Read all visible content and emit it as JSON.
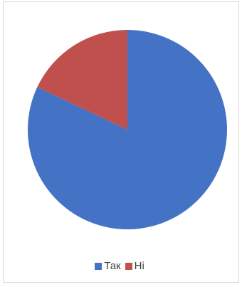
{
  "chart_data": {
    "type": "pie",
    "title": "",
    "categories": [
      "Так",
      "Ні"
    ],
    "values": [
      82,
      18
    ],
    "colors": [
      "#4472c4",
      "#c0504d"
    ],
    "legend": "bottom",
    "start_angle_deg": 0,
    "direction": "clockwise"
  }
}
